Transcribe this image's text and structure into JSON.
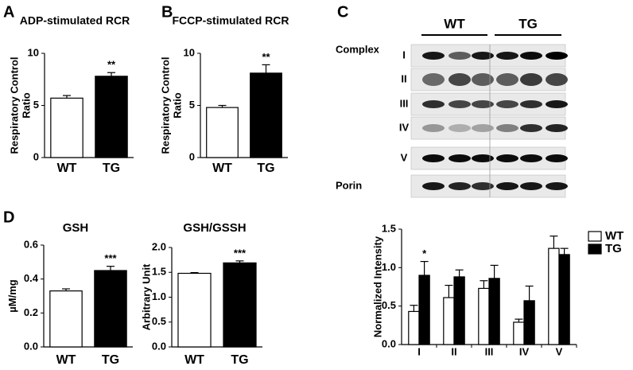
{
  "chart_data": [
    {
      "type": "bar",
      "panel": "A",
      "title": "ADP-stimulated RCR",
      "y_label": "Respiratory Control Ratio",
      "categories": [
        "WT",
        "TG"
      ],
      "values": [
        5.7,
        7.8
      ],
      "errors": [
        0.25,
        0.35
      ],
      "colors": [
        "#ffffff",
        "#000000"
      ],
      "edgecolor": "#000000",
      "ylim": [
        0,
        10
      ],
      "yticks": [
        0,
        5,
        10
      ],
      "annotations": [
        {
          "text": "**",
          "x": "TG"
        }
      ]
    },
    {
      "type": "bar",
      "panel": "B",
      "title": "FCCP-stimulated RCR",
      "y_label": "Respiratory Control Ratio",
      "categories": [
        "WT",
        "TG"
      ],
      "values": [
        4.8,
        8.1
      ],
      "errors": [
        0.2,
        0.8
      ],
      "colors": [
        "#ffffff",
        "#000000"
      ],
      "edgecolor": "#000000",
      "ylim": [
        0,
        10
      ],
      "yticks": [
        0,
        5,
        10
      ],
      "annotations": [
        {
          "text": "**",
          "x": "TG"
        }
      ]
    },
    {
      "type": "bar",
      "panel": "D",
      "title": "GSH",
      "y_label": "µM/mg",
      "categories": [
        "WT",
        "TG"
      ],
      "values": [
        0.33,
        0.45
      ],
      "errors": [
        0.012,
        0.025
      ],
      "colors": [
        "#ffffff",
        "#000000"
      ],
      "edgecolor": "#000000",
      "ylim": [
        0,
        0.6
      ],
      "yticks": [
        {
          "value": 0,
          "label": "0.0"
        },
        0.2,
        0.4,
        0.6
      ],
      "annotations": [
        {
          "text": "***",
          "x": "TG"
        }
      ]
    },
    {
      "type": "bar",
      "title": "GSH/GSSH",
      "y_label": "Arbitrary Unit",
      "categories": [
        "WT",
        "TG"
      ],
      "values": [
        1.48,
        1.69
      ],
      "errors": [
        0.015,
        0.04
      ],
      "colors": [
        "#ffffff",
        "#000000"
      ],
      "edgecolor": "#000000",
      "ylim": [
        0,
        2
      ],
      "yticks": [
        {
          "value": 0,
          "label": "0.0"
        },
        0.5,
        {
          "value": 1,
          "label": "1.0"
        },
        1.5,
        {
          "value": 2,
          "label": "2.0"
        }
      ],
      "annotations": [
        {
          "text": "***",
          "x": "TG"
        }
      ]
    },
    {
      "type": "grouped_bar",
      "y_label": "Normalized Intensity",
      "legend": "upper right",
      "edgecolor": "#000000",
      "categories": [
        "I",
        "II",
        "III",
        "IV",
        "V"
      ],
      "series": [
        {
          "name": "WT",
          "color": "#ffffff",
          "values": [
            0.43,
            0.61,
            0.73,
            0.29,
            1.25
          ],
          "errors": [
            0.08,
            0.16,
            0.1,
            0.04,
            0.16
          ]
        },
        {
          "name": "TG",
          "color": "#000000",
          "values": [
            0.9,
            0.88,
            0.86,
            0.57,
            1.17
          ],
          "errors": [
            0.18,
            0.09,
            0.17,
            0.19,
            0.08
          ]
        }
      ],
      "ylim": [
        0,
        1.5
      ],
      "yticks": [
        {
          "value": 0,
          "label": "0.0"
        },
        0.5,
        {
          "value": 1,
          "label": "1.0"
        },
        1.5
      ],
      "annotations": [
        {
          "text": "*",
          "x": "I",
          "series": "TG"
        }
      ]
    }
  ],
  "blot": {
    "panel": "C",
    "groups": [
      "WT",
      "TG"
    ],
    "row_title": "Complex",
    "rows": [
      "I",
      "II",
      "III",
      "IV",
      "V"
    ],
    "loading": "Porin"
  }
}
